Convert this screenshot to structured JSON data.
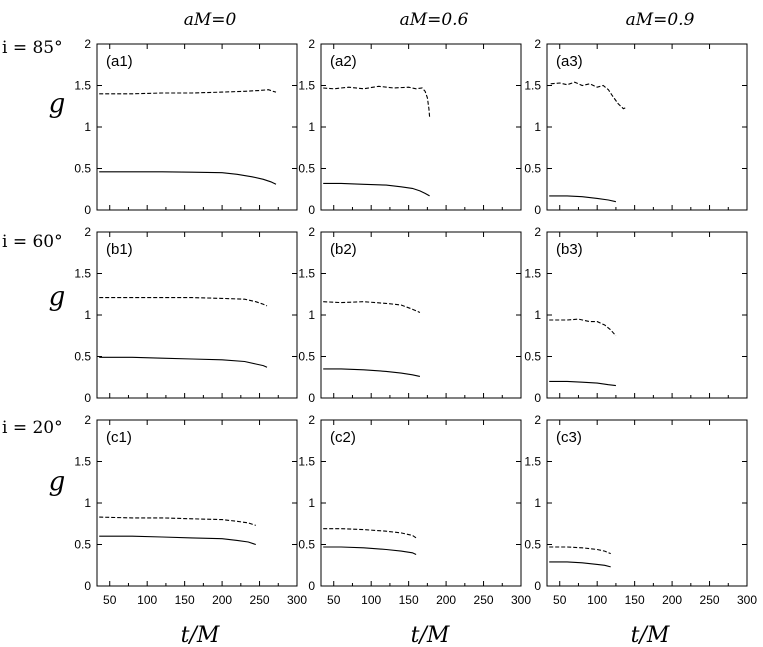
{
  "col_titles": [
    "aM=0",
    "aM=0.6",
    "aM=0.9"
  ],
  "row_titles": [
    "i = 85°",
    "i = 60°",
    "i = 20°"
  ],
  "ylabel": "g",
  "xlabel": "t/M",
  "xticks": [
    50,
    100,
    150,
    200,
    250,
    300
  ],
  "yticks": [
    "0",
    "0.5",
    "1",
    "1.5",
    "2"
  ],
  "chart_data": [
    {
      "type": "line",
      "label": "(a1)",
      "xlim": [
        33,
        300
      ],
      "ylim": [
        0,
        2
      ],
      "series": [
        {
          "x": [
            36,
            80,
            120,
            160,
            200,
            220,
            240,
            255,
            265,
            272
          ],
          "y": [
            0.46,
            0.46,
            0.46,
            0.455,
            0.45,
            0.43,
            0.4,
            0.37,
            0.34,
            0.31
          ],
          "style": "solid"
        },
        {
          "x": [
            36,
            80,
            120,
            160,
            200,
            230,
            250,
            262,
            268,
            272
          ],
          "y": [
            1.4,
            1.4,
            1.41,
            1.41,
            1.42,
            1.43,
            1.44,
            1.45,
            1.43,
            1.42
          ],
          "style": "dashed"
        }
      ]
    },
    {
      "type": "line",
      "label": "(a2)",
      "xlim": [
        33,
        300
      ],
      "ylim": [
        0,
        2
      ],
      "series": [
        {
          "x": [
            36,
            60,
            90,
            120,
            140,
            155,
            165,
            172,
            178
          ],
          "y": [
            0.32,
            0.32,
            0.31,
            0.3,
            0.28,
            0.26,
            0.23,
            0.2,
            0.17
          ],
          "style": "solid"
        },
        {
          "x": [
            36,
            50,
            70,
            90,
            110,
            130,
            150,
            160,
            168,
            172,
            175,
            177,
            178
          ],
          "y": [
            1.47,
            1.46,
            1.48,
            1.46,
            1.49,
            1.47,
            1.48,
            1.46,
            1.47,
            1.43,
            1.35,
            1.22,
            1.12
          ],
          "style": "dashed"
        }
      ]
    },
    {
      "type": "line",
      "label": "(a3)",
      "xlim": [
        33,
        300
      ],
      "ylim": [
        0,
        2
      ],
      "series": [
        {
          "x": [
            36,
            60,
            80,
            100,
            115,
            125
          ],
          "y": [
            0.17,
            0.17,
            0.16,
            0.14,
            0.12,
            0.1
          ],
          "style": "solid"
        },
        {
          "x": [
            38,
            50,
            60,
            70,
            80,
            90,
            100,
            108,
            115,
            120,
            128,
            135,
            140
          ],
          "y": [
            1.52,
            1.53,
            1.51,
            1.54,
            1.5,
            1.52,
            1.48,
            1.5,
            1.45,
            1.38,
            1.28,
            1.22,
            1.24
          ],
          "style": "dashed"
        }
      ]
    },
    {
      "type": "line",
      "label": "(b1)",
      "xlim": [
        33,
        300
      ],
      "ylim": [
        0,
        2
      ],
      "series": [
        {
          "x": [
            36,
            80,
            120,
            160,
            200,
            230,
            245,
            255,
            260
          ],
          "y": [
            0.49,
            0.49,
            0.48,
            0.47,
            0.46,
            0.44,
            0.41,
            0.39,
            0.37
          ],
          "style": "solid"
        },
        {
          "x": [
            36,
            80,
            120,
            160,
            200,
            230,
            245,
            255,
            260
          ],
          "y": [
            1.21,
            1.21,
            1.21,
            1.21,
            1.2,
            1.19,
            1.16,
            1.13,
            1.11
          ],
          "style": "dashed"
        }
      ]
    },
    {
      "type": "line",
      "label": "(b2)",
      "xlim": [
        33,
        300
      ],
      "ylim": [
        0,
        2
      ],
      "series": [
        {
          "x": [
            36,
            60,
            90,
            120,
            140,
            155,
            165
          ],
          "y": [
            0.35,
            0.35,
            0.34,
            0.32,
            0.3,
            0.28,
            0.26
          ],
          "style": "solid"
        },
        {
          "x": [
            36,
            60,
            90,
            120,
            140,
            155,
            165
          ],
          "y": [
            1.16,
            1.15,
            1.16,
            1.14,
            1.12,
            1.07,
            1.03
          ],
          "style": "dashed"
        }
      ]
    },
    {
      "type": "line",
      "label": "(b3)",
      "xlim": [
        33,
        300
      ],
      "ylim": [
        0,
        2
      ],
      "series": [
        {
          "x": [
            36,
            60,
            80,
            100,
            115,
            125
          ],
          "y": [
            0.2,
            0.2,
            0.19,
            0.18,
            0.16,
            0.15
          ],
          "style": "solid"
        },
        {
          "x": [
            36,
            60,
            75,
            90,
            100,
            110,
            118,
            125
          ],
          "y": [
            0.94,
            0.94,
            0.95,
            0.92,
            0.92,
            0.88,
            0.82,
            0.75
          ],
          "style": "dashed"
        }
      ]
    },
    {
      "type": "line",
      "label": "(c1)",
      "xlim": [
        33,
        300
      ],
      "ylim": [
        0,
        2
      ],
      "series": [
        {
          "x": [
            36,
            80,
            120,
            160,
            200,
            220,
            235,
            245
          ],
          "y": [
            0.6,
            0.6,
            0.59,
            0.58,
            0.57,
            0.55,
            0.53,
            0.5
          ],
          "style": "solid"
        },
        {
          "x": [
            36,
            80,
            120,
            160,
            200,
            220,
            235,
            245
          ],
          "y": [
            0.83,
            0.82,
            0.82,
            0.81,
            0.8,
            0.78,
            0.76,
            0.73
          ],
          "style": "dashed"
        }
      ]
    },
    {
      "type": "line",
      "label": "(c2)",
      "xlim": [
        33,
        300
      ],
      "ylim": [
        0,
        2
      ],
      "series": [
        {
          "x": [
            36,
            60,
            90,
            120,
            140,
            155,
            160
          ],
          "y": [
            0.47,
            0.47,
            0.46,
            0.44,
            0.42,
            0.4,
            0.38
          ],
          "style": "solid"
        },
        {
          "x": [
            36,
            60,
            90,
            120,
            140,
            155,
            160
          ],
          "y": [
            0.69,
            0.69,
            0.68,
            0.66,
            0.64,
            0.61,
            0.58
          ],
          "style": "dashed"
        }
      ]
    },
    {
      "type": "line",
      "label": "(c3)",
      "xlim": [
        33,
        300
      ],
      "ylim": [
        0,
        2
      ],
      "series": [
        {
          "x": [
            36,
            60,
            80,
            100,
            110,
            118
          ],
          "y": [
            0.29,
            0.29,
            0.28,
            0.26,
            0.25,
            0.23
          ],
          "style": "solid"
        },
        {
          "x": [
            36,
            60,
            80,
            100,
            110,
            118
          ],
          "y": [
            0.47,
            0.47,
            0.46,
            0.44,
            0.42,
            0.39
          ],
          "style": "dashed"
        }
      ]
    }
  ]
}
